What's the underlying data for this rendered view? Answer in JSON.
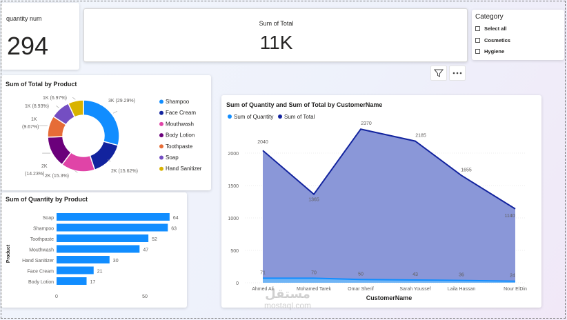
{
  "kpi_quantity": {
    "label": "quantity num",
    "value": "294"
  },
  "kpi_total": {
    "label": "Sum of Total",
    "value": "11K"
  },
  "slicer": {
    "title": "Category",
    "items": [
      {
        "label": "Select all"
      },
      {
        "label": "Cosmetics"
      },
      {
        "label": "Hygiene"
      }
    ]
  },
  "toolbar": {
    "filter_icon": "filter-icon",
    "more_icon": "more-options-icon"
  },
  "colors": {
    "shampoo": "#118DFF",
    "face_cream": "#12239E",
    "mouthwash": "#E044A7",
    "body_lotion": "#6B007B",
    "toothpaste": "#E66C37",
    "soap": "#744EC2",
    "hand_sanitizer": "#D9B300",
    "bar": "#118DFF",
    "area_total": "#8A97D8",
    "line_total": "#12239E",
    "line_quantity": "#118DFF"
  },
  "chart_data": [
    {
      "type": "pie",
      "title": "Sum of Total by Product",
      "categories": [
        "Shampoo",
        "Face Cream",
        "Mouthwash",
        "Body Lotion",
        "Toothpaste",
        "Soap",
        "Hand Sanitizer"
      ],
      "values": [
        29.29,
        15.62,
        15.3,
        14.23,
        9.67,
        8.93,
        6.97
      ],
      "data_labels": [
        "3K (29.29%)",
        "2K (15.62%)",
        "2K (15.3%)",
        "2K (14.23%)",
        "1K (9.67%)",
        "1K (8.93%)",
        "1K (6.97%)"
      ],
      "legend_position": "right"
    },
    {
      "type": "bar",
      "orientation": "horizontal",
      "title": "Sum of Quantity by Product",
      "ylabel": "Product",
      "categories": [
        "Soap",
        "Shampoo",
        "Toothpaste",
        "Mouthwash",
        "Hand Sanitizer",
        "Face Cream",
        "Body Lotion"
      ],
      "values": [
        64,
        63,
        52,
        47,
        30,
        21,
        17
      ],
      "xlim": [
        0,
        75
      ],
      "xticks": [
        "0",
        "50"
      ]
    },
    {
      "type": "area",
      "title": "Sum of Quantity and Sum of Total by CustomerName",
      "xlabel": "CustomerName",
      "categories": [
        "Ahmed Ali",
        "Mohamed Tarek",
        "Omar Sherif",
        "Sarah Youssef",
        "Laila Hassan",
        "Nour ElDin"
      ],
      "series": [
        {
          "name": "Sum of Quantity",
          "values": [
            71,
            70,
            50,
            43,
            36,
            24
          ]
        },
        {
          "name": "Sum of Total",
          "values": [
            2040,
            1365,
            2370,
            2185,
            1655,
            1140
          ]
        }
      ],
      "ylim": [
        0,
        2500
      ],
      "yticks": [
        "0",
        "500",
        "1000",
        "1500",
        "2000"
      ],
      "legend_position": "top-left"
    }
  ],
  "watermark": {
    "brand": "مستقل",
    "site": "mostaql.com"
  }
}
